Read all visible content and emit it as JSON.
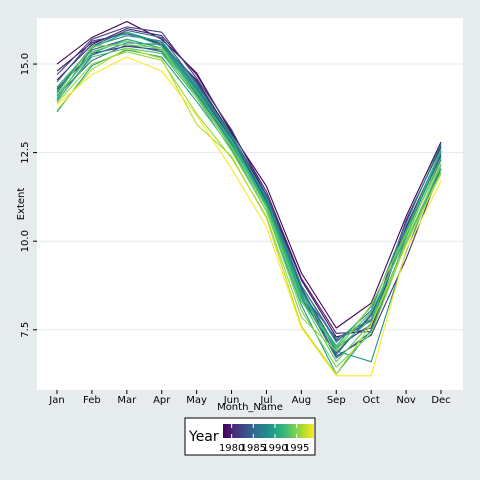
{
  "chart_data": {
    "type": "line",
    "title": "",
    "xlabel": "Month_Name",
    "ylabel": "Extent",
    "categories": [
      "Jan",
      "Feb",
      "Mar",
      "Apr",
      "May",
      "Jun",
      "Jul",
      "Aug",
      "Sep",
      "Oct",
      "Nov",
      "Dec"
    ],
    "ylim": [
      5.8,
      16.3
    ],
    "yticks": [
      7.5,
      10.0,
      12.5,
      15.0
    ],
    "ytick_labels": [
      "7.5",
      "10.0",
      "12.5",
      "15.0"
    ],
    "grid": true,
    "legend": {
      "title": "Year",
      "placement": "bottom",
      "tick_labels": [
        "1980",
        "1985",
        "1990",
        "1995"
      ],
      "year_range": [
        1978,
        1999
      ],
      "colors": [
        "#440154",
        "#482878",
        "#3e4989",
        "#31688e",
        "#26828e",
        "#1f9e89",
        "#35b779",
        "#6ece58",
        "#b5de2b",
        "#fde725"
      ]
    },
    "series": [
      {
        "color": "#440154",
        "values": [
          15.0,
          15.75,
          16.2,
          15.7,
          14.75,
          13.05,
          11.55,
          9.1,
          7.55,
          8.25,
          10.7,
          12.8
        ]
      },
      {
        "color": "#46125e",
        "values": [
          14.8,
          15.6,
          15.9,
          15.55,
          14.55,
          13.0,
          11.3,
          8.9,
          7.3,
          7.55,
          10.4,
          12.55
        ]
      },
      {
        "color": "#482071",
        "values": [
          14.55,
          15.55,
          16.0,
          15.8,
          14.7,
          13.1,
          11.4,
          8.95,
          7.4,
          7.45,
          10.55,
          12.7
        ]
      },
      {
        "color": "#472d7b",
        "values": [
          14.3,
          15.3,
          15.5,
          15.4,
          14.3,
          12.9,
          11.25,
          8.6,
          6.75,
          7.35,
          9.5,
          12.05
        ]
      },
      {
        "color": "#433d84",
        "values": [
          14.7,
          15.7,
          16.05,
          15.9,
          14.6,
          13.15,
          11.3,
          8.75,
          7.2,
          7.75,
          10.6,
          12.65
        ]
      },
      {
        "color": "#3e4a89",
        "values": [
          14.5,
          15.65,
          15.85,
          15.6,
          14.5,
          12.95,
          11.2,
          8.65,
          7.0,
          7.65,
          10.35,
          12.4
        ]
      },
      {
        "color": "#38588c",
        "values": [
          14.35,
          15.4,
          15.7,
          15.45,
          14.2,
          12.85,
          11.1,
          8.7,
          6.85,
          7.9,
          10.15,
          12.3
        ]
      },
      {
        "color": "#33638d",
        "values": [
          14.2,
          15.5,
          15.95,
          15.75,
          14.45,
          12.9,
          11.15,
          8.55,
          7.25,
          7.8,
          10.25,
          12.45
        ]
      },
      {
        "color": "#2d708e",
        "values": [
          14.1,
          15.1,
          15.55,
          15.35,
          14.15,
          12.75,
          11.1,
          8.4,
          6.8,
          7.95,
          10.2,
          12.5
        ]
      },
      {
        "color": "#287c8e",
        "values": [
          13.95,
          15.25,
          15.6,
          15.55,
          14.3,
          12.8,
          11.05,
          8.5,
          6.7,
          7.45,
          10.1,
          12.35
        ]
      },
      {
        "color": "#24878e",
        "values": [
          14.0,
          15.45,
          15.9,
          15.6,
          14.35,
          12.95,
          11.25,
          8.75,
          7.15,
          8.05,
          10.5,
          12.75
        ]
      },
      {
        "color": "#20938c",
        "values": [
          14.25,
          15.5,
          15.8,
          15.65,
          14.4,
          13.0,
          11.2,
          8.6,
          6.9,
          6.6,
          9.7,
          12.15
        ]
      },
      {
        "color": "#1fa088",
        "values": [
          13.65,
          14.95,
          15.4,
          15.2,
          13.95,
          12.6,
          10.85,
          8.2,
          6.25,
          7.5,
          9.95,
          12.05
        ]
      },
      {
        "color": "#25ac82",
        "values": [
          14.1,
          15.3,
          15.7,
          15.45,
          14.2,
          12.8,
          11.0,
          8.45,
          7.05,
          8.15,
          10.3,
          12.6
        ]
      },
      {
        "color": "#34b679",
        "values": [
          14.35,
          15.45,
          15.9,
          15.5,
          14.25,
          12.85,
          11.05,
          8.55,
          6.95,
          7.8,
          10.25,
          12.55
        ]
      },
      {
        "color": "#48c16e",
        "values": [
          13.95,
          15.2,
          15.45,
          15.3,
          14.05,
          12.7,
          10.95,
          8.3,
          7.0,
          8.0,
          10.1,
          12.35
        ]
      },
      {
        "color": "#5ec962",
        "values": [
          14.05,
          15.35,
          15.65,
          15.4,
          14.1,
          12.65,
          10.95,
          8.35,
          6.6,
          7.7,
          10.0,
          12.15
        ]
      },
      {
        "color": "#77d153",
        "values": [
          14.15,
          15.5,
          15.55,
          15.45,
          14.05,
          12.55,
          10.85,
          8.05,
          6.45,
          7.4,
          9.95,
          11.95
        ]
      },
      {
        "color": "#94d840",
        "values": [
          13.9,
          15.0,
          15.35,
          15.1,
          13.6,
          12.35,
          10.7,
          7.85,
          6.9,
          8.2,
          10.2,
          12.2
        ]
      },
      {
        "color": "#b2dd2d",
        "values": [
          13.7,
          14.85,
          15.45,
          15.15,
          13.3,
          12.4,
          10.65,
          7.6,
          6.25,
          7.65,
          9.9,
          11.9
        ]
      },
      {
        "color": "#fde725",
        "values": [
          13.85,
          14.7,
          15.2,
          14.8,
          13.55,
          12.05,
          10.4,
          7.55,
          6.2,
          6.2,
          9.75,
          11.7
        ]
      }
    ]
  }
}
